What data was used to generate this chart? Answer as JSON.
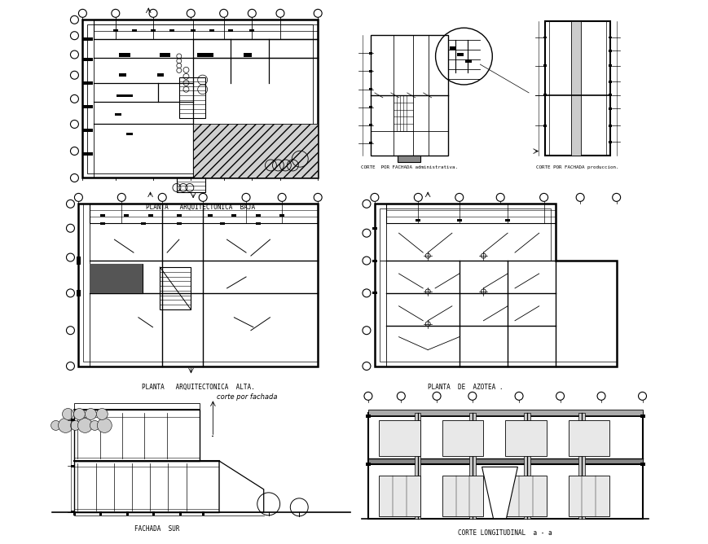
{
  "bg_color": "#ffffff",
  "line_color": "#000000",
  "labels": {
    "plan_baja": "PLANTA   ARQUITECTONICA  BAJA",
    "plan_alta": "PLANTA   ARQUITECTONICA  ALTA.",
    "plan_azotea": "PLANTA  DE  AZOTEA .",
    "fachada_sur": "FACHADA  SUR",
    "corte_long": "CORTE LONGITUDINAL  a - a",
    "corte_fachada_adm": "CORTE  POR FACHADA administrativa.",
    "corte_fachada_prod": "CORTE POR FACHADA produccion.",
    "corte_por_fachada": "corte por fachada"
  },
  "figsize": [
    8.7,
    6.68
  ],
  "dpi": 100
}
